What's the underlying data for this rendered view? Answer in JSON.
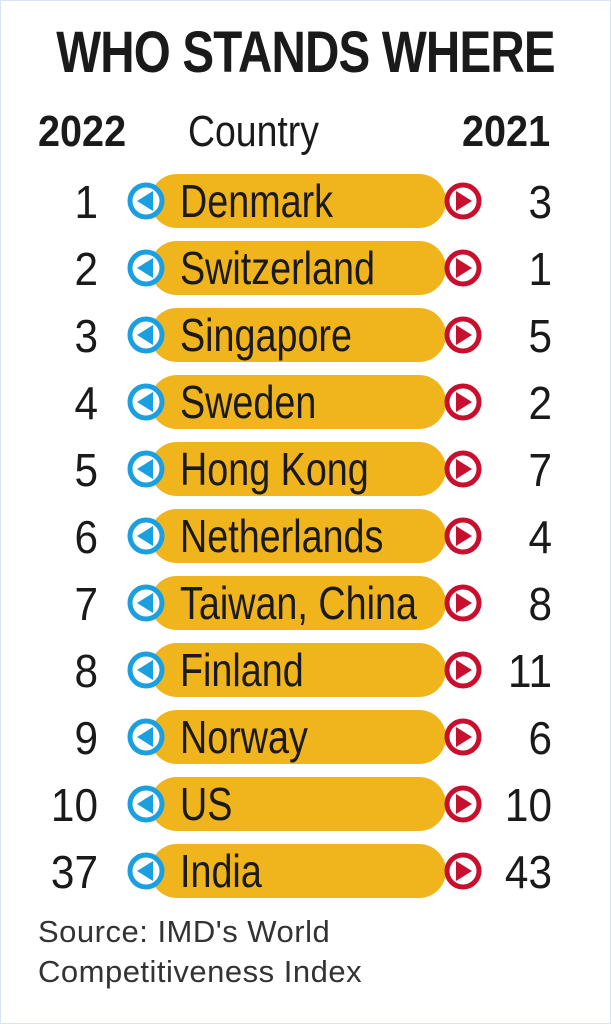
{
  "title": "WHO STANDS WHERE",
  "headers": {
    "year_current": "2022",
    "country": "Country",
    "year_previous": "2021"
  },
  "colors": {
    "pill": "#f0b41c",
    "left_arrow": "#1aa0e0",
    "right_arrow": "#c8102e"
  },
  "icons": {
    "left": "left-triangle-circle-icon",
    "right": "right-triangle-circle-icon"
  },
  "chart_data": {
    "type": "table",
    "title": "WHO STANDS WHERE",
    "columns": [
      "2022",
      "Country",
      "2021"
    ],
    "rows": [
      {
        "rank_2022": "1",
        "country": "Denmark",
        "rank_2021": "3"
      },
      {
        "rank_2022": "2",
        "country": "Switzerland",
        "rank_2021": "1"
      },
      {
        "rank_2022": "3",
        "country": "Singapore",
        "rank_2021": "5"
      },
      {
        "rank_2022": "4",
        "country": "Sweden",
        "rank_2021": "2"
      },
      {
        "rank_2022": "5",
        "country": "Hong Kong",
        "rank_2021": "7"
      },
      {
        "rank_2022": "6",
        "country": "Netherlands",
        "rank_2021": "4"
      },
      {
        "rank_2022": "7",
        "country": "Taiwan, China",
        "rank_2021": "8"
      },
      {
        "rank_2022": "8",
        "country": "Finland",
        "rank_2021": "11"
      },
      {
        "rank_2022": "9",
        "country": "Norway",
        "rank_2021": "6"
      },
      {
        "rank_2022": "10",
        "country": "US",
        "rank_2021": "10"
      },
      {
        "rank_2022": "37",
        "country": "India",
        "rank_2021": "43"
      }
    ]
  },
  "source": {
    "line1": "Source: IMD's World",
    "line2": "Competitiveness Index"
  }
}
